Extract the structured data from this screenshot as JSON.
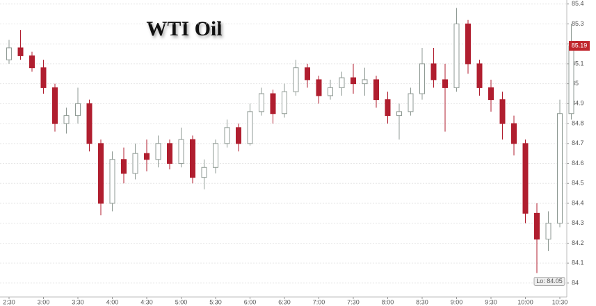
{
  "chart_data": {
    "type": "candlestick",
    "title": "WTI Oil",
    "categories": [
      "2:30",
      null,
      null,
      "3:00",
      null,
      null,
      "3:30",
      null,
      null,
      "4:00",
      null,
      null,
      "4:30",
      null,
      null,
      "5:00",
      null,
      null,
      "5:30",
      null,
      null,
      "6:00",
      null,
      null,
      "6:30",
      null,
      null,
      "7:00",
      null,
      null,
      "7:30",
      null,
      null,
      "8:00",
      null,
      null,
      "8:30",
      null,
      null,
      "9:00",
      null,
      null,
      "9:30",
      null,
      null,
      "10:00",
      null,
      null,
      "10:30",
      null
    ],
    "open": [
      85.12,
      85.18,
      85.14,
      85.08,
      84.98,
      84.8,
      84.84,
      84.9,
      84.7,
      84.4,
      84.62,
      84.55,
      84.65,
      84.62,
      84.7,
      84.6,
      84.72,
      84.53,
      84.58,
      84.7,
      84.78,
      84.7,
      84.86,
      84.95,
      84.85,
      84.96,
      85.08,
      85.02,
      84.94,
      84.98,
      85.03,
      85.0,
      85.02,
      84.92,
      84.84,
      84.86,
      84.95,
      85.1,
      85.02,
      84.98,
      85.3,
      85.1,
      84.98,
      84.92,
      84.8,
      84.7,
      84.35,
      84.22,
      84.3,
      84.85
    ],
    "high": [
      85.22,
      85.27,
      85.16,
      85.12,
      85.0,
      84.88,
      84.98,
      84.92,
      84.72,
      84.66,
      84.68,
      84.7,
      84.72,
      84.74,
      84.72,
      84.78,
      84.74,
      84.62,
      84.72,
      84.82,
      84.8,
      84.9,
      84.98,
      84.97,
      85.0,
      85.12,
      85.1,
      85.04,
      85.02,
      85.06,
      85.1,
      85.08,
      85.04,
      84.96,
      84.9,
      84.98,
      85.18,
      85.18,
      85.1,
      85.38,
      85.32,
      85.12,
      85.02,
      84.96,
      84.84,
      84.72,
      84.4,
      84.36,
      84.92,
      85.3
    ],
    "low": [
      85.1,
      85.12,
      85.06,
      84.95,
      84.76,
      84.75,
      84.8,
      84.66,
      84.34,
      84.36,
      84.5,
      84.52,
      84.56,
      84.58,
      84.57,
      84.58,
      84.5,
      84.47,
      84.55,
      84.68,
      84.66,
      84.69,
      84.84,
      84.8,
      84.83,
      84.94,
      84.98,
      84.9,
      84.92,
      84.94,
      84.95,
      84.94,
      84.88,
      84.8,
      84.72,
      84.84,
      84.92,
      84.98,
      84.76,
      84.96,
      85.05,
      84.94,
      84.86,
      84.72,
      84.64,
      84.3,
      84.05,
      84.16,
      84.28,
      84.82
    ],
    "close": [
      85.18,
      85.14,
      85.08,
      84.98,
      84.8,
      84.84,
      84.9,
      84.7,
      84.4,
      84.62,
      84.55,
      84.65,
      84.62,
      84.7,
      84.6,
      84.72,
      84.53,
      84.58,
      84.7,
      84.78,
      84.7,
      84.86,
      84.95,
      84.85,
      84.96,
      85.08,
      85.02,
      84.94,
      84.98,
      85.03,
      85.0,
      85.02,
      84.92,
      84.84,
      84.86,
      84.95,
      85.1,
      85.02,
      84.98,
      85.3,
      85.1,
      84.98,
      84.92,
      84.8,
      84.7,
      84.35,
      84.22,
      84.3,
      84.85,
      85.19
    ],
    "up_color": "#8f9a94",
    "down_color": "#b01e2f",
    "ylim": [
      83.93,
      85.42
    ],
    "yticks": [
      84,
      84.1,
      84.2,
      84.3,
      84.4,
      84.5,
      84.6,
      84.7,
      84.8,
      84.9,
      85,
      85.1,
      85.2,
      85.3,
      85.4
    ],
    "grid": true,
    "last_price": 85.19,
    "low_label": "Lo: 84.05"
  }
}
